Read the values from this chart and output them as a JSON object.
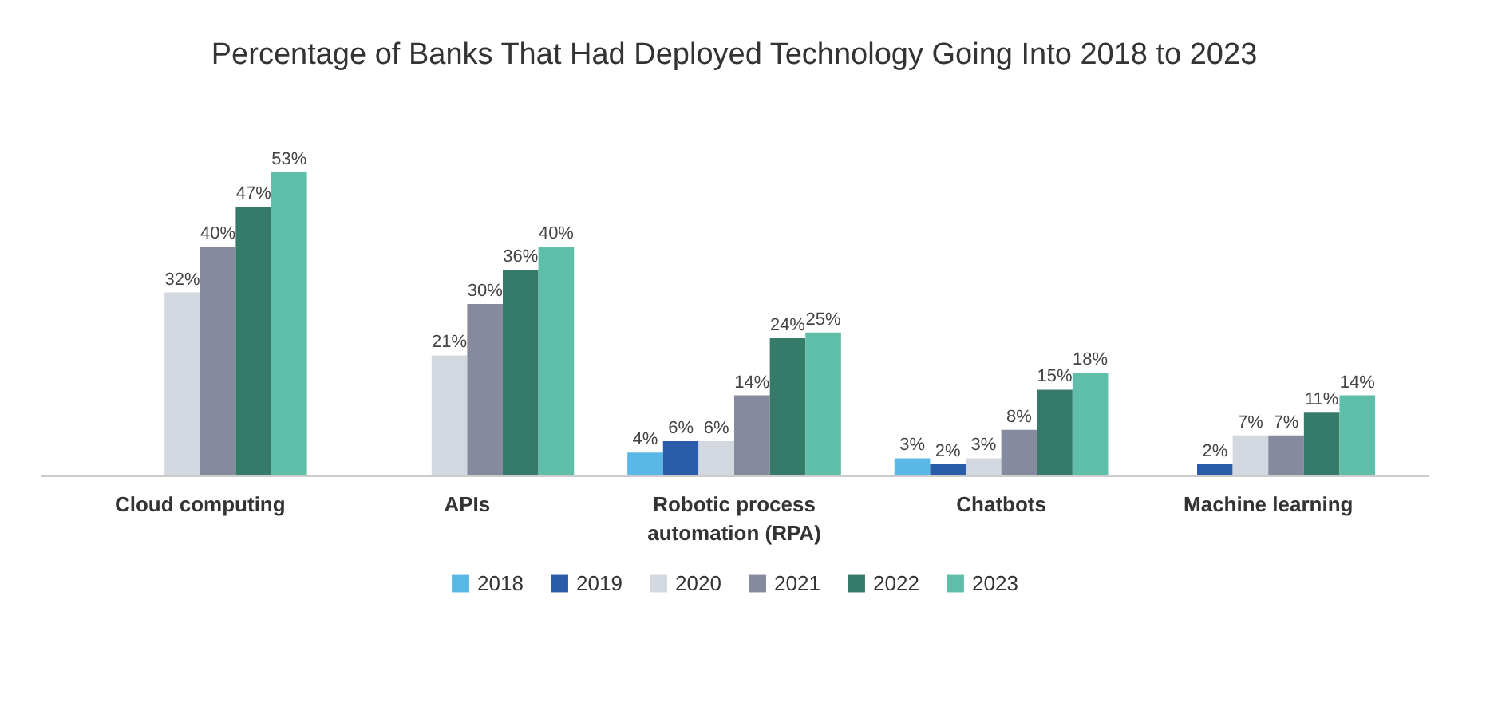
{
  "chart_data": {
    "type": "bar",
    "title": "Percentage of Banks That Had Deployed Technology Going Into 2018 to 2023",
    "categories": [
      "Cloud computing",
      "APIs",
      "Robotic process automation (RPA)",
      "Chatbots",
      "Machine learning"
    ],
    "series": [
      {
        "name": "2018",
        "color": "#5bb8e6",
        "values": [
          null,
          null,
          4,
          3,
          null
        ],
        "value_labels": [
          null,
          null,
          "4%",
          "3%",
          null
        ]
      },
      {
        "name": "2019",
        "color": "#2a5caa",
        "values": [
          null,
          null,
          6,
          2,
          2
        ],
        "value_labels": [
          null,
          null,
          "6%",
          "2%",
          "2%"
        ]
      },
      {
        "name": "2020",
        "color": "#d3d7e0",
        "values": [
          32,
          21,
          6,
          3,
          7
        ],
        "value_labels": [
          "32%",
          "21%",
          "6%",
          "3%",
          "7%"
        ]
      },
      {
        "name": "2021",
        "color": "#868a9e",
        "values": [
          40,
          30,
          14,
          8,
          7
        ],
        "value_labels": [
          "40%",
          "30%",
          "14%",
          "8%",
          "7%"
        ]
      },
      {
        "name": "2022",
        "color": "#367a6a",
        "values": [
          47,
          36,
          24,
          15,
          11
        ],
        "value_labels": [
          "47%",
          "36%",
          "24%",
          "15%",
          "11%"
        ]
      },
      {
        "name": "2023",
        "color": "#5fbeaa",
        "values": [
          53,
          40,
          25,
          18,
          14
        ],
        "value_labels": [
          "53%",
          "40%",
          "25%",
          "18%",
          "14%"
        ]
      }
    ],
    "legend": "bottom"
  }
}
